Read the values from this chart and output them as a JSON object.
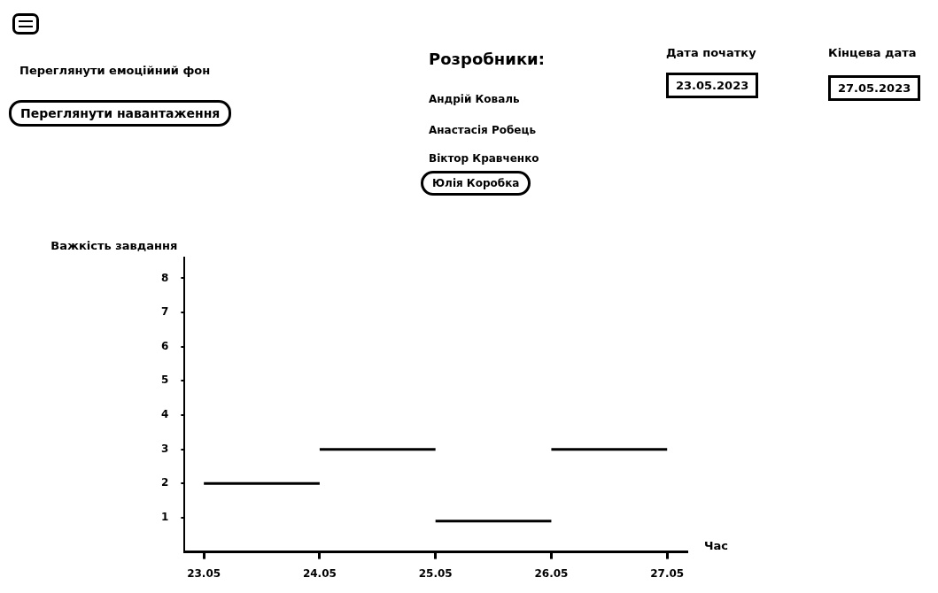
{
  "chart_data": [
    {
      "type": "other",
      "annotations": [
        "Переглянути емоційний фон",
        "Переглянути навантаження",
        "Розробники:",
        "Андрій Коваль",
        "Анастасія Робець",
        "Віктор Кравченко",
        "Юлія Коробка",
        "Дата початку",
        "23.05.2023",
        "Кінцева дата",
        "27.05.2023"
      ]
    },
    {
      "type": "line",
      "xlabel": "Час",
      "ylabel": "Важкість завдання",
      "grid": false,
      "legend": false,
      "marker": "none",
      "xlim": [
        "--05-22T20:00",
        "--05-27T04:00"
      ],
      "xticks": [
        {
          "value": "--05-23",
          "label": "23.05"
        },
        {
          "value": "--05-24",
          "label": "24.05"
        },
        {
          "value": "--05-25",
          "label": "25.05"
        },
        {
          "value": "--05-26",
          "label": "26.05"
        },
        {
          "value": "--05-27",
          "label": "27.05"
        }
      ],
      "ylim": [
        0,
        8.6
      ],
      "yticks": [
        1,
        2,
        3,
        4,
        5,
        6,
        7,
        8
      ],
      "series": [
        {
          "color": "#000000",
          "x": [
            "--05-23",
            "--05-24"
          ],
          "values": [
            2,
            2
          ]
        },
        {
          "color": "#000000",
          "x": [
            "--05-24",
            "--05-25"
          ],
          "values": [
            3,
            3
          ]
        },
        {
          "color": "#000000",
          "x": [
            "--05-25",
            "--05-26"
          ],
          "values": [
            0.9,
            0.9
          ]
        },
        {
          "color": "#000000",
          "x": [
            "--05-26",
            "--05-27"
          ],
          "values": [
            3,
            3
          ]
        }
      ]
    }
  ]
}
